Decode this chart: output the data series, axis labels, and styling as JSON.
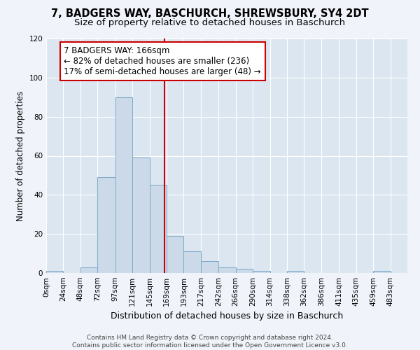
{
  "title": "7, BADGERS WAY, BASCHURCH, SHREWSBURY, SY4 2DT",
  "subtitle": "Size of property relative to detached houses in Baschurch",
  "xlabel": "Distribution of detached houses by size in Baschurch",
  "ylabel": "Number of detached properties",
  "bar_color": "#ccd9e8",
  "bar_edge_color": "#7aaac8",
  "background_color": "#dce6f0",
  "grid_color": "#ffffff",
  "bin_labels": [
    "0sqm",
    "24sqm",
    "48sqm",
    "72sqm",
    "97sqm",
    "121sqm",
    "145sqm",
    "169sqm",
    "193sqm",
    "217sqm",
    "242sqm",
    "266sqm",
    "290sqm",
    "314sqm",
    "338sqm",
    "362sqm",
    "386sqm",
    "411sqm",
    "435sqm",
    "459sqm",
    "483sqm"
  ],
  "bar_values": [
    1,
    0,
    3,
    49,
    90,
    59,
    45,
    19,
    11,
    6,
    3,
    2,
    1,
    0,
    1,
    0,
    0,
    0,
    0,
    1,
    0
  ],
  "bin_edges": [
    0,
    24,
    48,
    72,
    97,
    121,
    145,
    169,
    193,
    217,
    242,
    266,
    290,
    314,
    338,
    362,
    386,
    411,
    435,
    459,
    483,
    507
  ],
  "property_size": 166,
  "vline_color": "#cc0000",
  "annotation_line1": "7 BADGERS WAY: 166sqm",
  "annotation_line2": "← 82% of detached houses are smaller (236)",
  "annotation_line3": "17% of semi-detached houses are larger (48) →",
  "annotation_box_color": "#ffffff",
  "annotation_box_edge": "#cc0000",
  "ylim": [
    0,
    120
  ],
  "yticks": [
    0,
    20,
    40,
    60,
    80,
    100,
    120
  ],
  "footnote": "Contains HM Land Registry data © Crown copyright and database right 2024.\nContains public sector information licensed under the Open Government Licence v3.0.",
  "title_fontsize": 10.5,
  "subtitle_fontsize": 9.5,
  "xlabel_fontsize": 9,
  "ylabel_fontsize": 8.5,
  "tick_fontsize": 7.5,
  "annotation_fontsize": 8.5,
  "footnote_fontsize": 6.5
}
